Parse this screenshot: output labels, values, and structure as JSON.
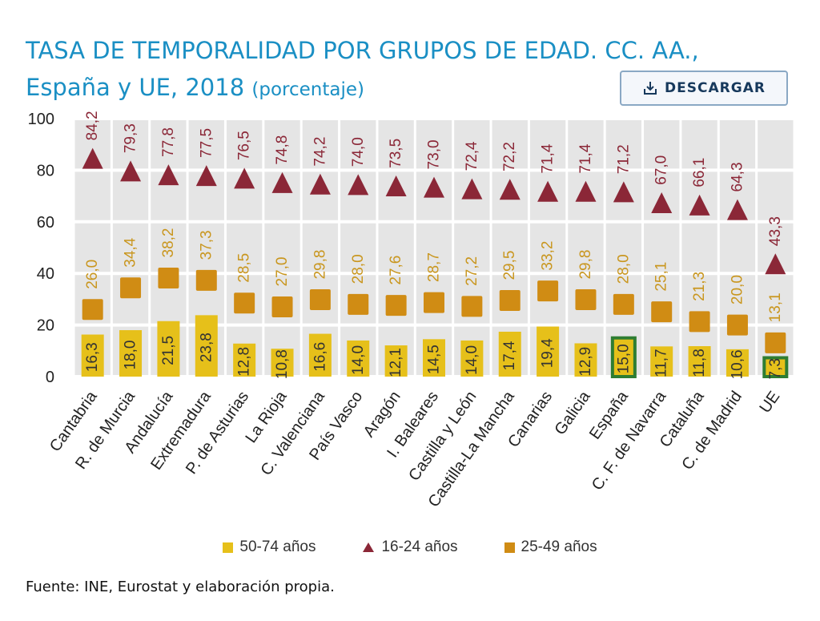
{
  "title": {
    "line1": "TASA DE TEMPORALIDAD POR GRUPOS DE EDAD. CC. AA.,",
    "line2": "España y UE, 2018",
    "unit": "(porcentaje)"
  },
  "download_button": {
    "label": "DESCARGAR",
    "icon": "download-icon"
  },
  "source": "Fuente: INE, Eurostat y elaboración propia.",
  "colors": {
    "age_50_74": "#e6c01a",
    "age_16_24": "#8b2737",
    "age_25_49": "#d08c14",
    "label_25_49": "#c9961e",
    "highlight": "#2e7d32",
    "plot_bg": "#e5e5e5",
    "title": "#1a8fc4"
  },
  "chart_data": {
    "type": "bar",
    "categories": [
      "Cantabria",
      "R. de Murcia",
      "Andalucía",
      "Extremadura",
      "P. de Asturias",
      "La Rioja",
      "C. Valenciana",
      "País Vasco",
      "Aragón",
      "I. Baleares",
      "Castilla y León",
      "Castilla-La Mancha",
      "Canarias",
      "Galicia",
      "España",
      "C. F. de Navarra",
      "Cataluña",
      "C. de Madrid",
      "UE"
    ],
    "series": [
      {
        "name": "50-74 años",
        "marker": "bar",
        "values": [
          16.3,
          18.0,
          21.5,
          23.8,
          12.8,
          10.8,
          16.6,
          14.0,
          12.1,
          14.5,
          14.0,
          17.4,
          19.4,
          12.9,
          15.0,
          11.7,
          11.8,
          10.6,
          7.3
        ]
      },
      {
        "name": "16-24 años",
        "marker": "triangle",
        "values": [
          84.2,
          79.3,
          77.8,
          77.5,
          76.5,
          74.8,
          74.2,
          74.0,
          73.5,
          73.0,
          72.4,
          72.2,
          71.4,
          71.4,
          71.2,
          67.0,
          66.1,
          64.3,
          43.3
        ]
      },
      {
        "name": "25-49 años",
        "marker": "square",
        "values": [
          26.0,
          34.4,
          38.2,
          37.3,
          28.5,
          27.0,
          29.8,
          28.0,
          27.6,
          28.7,
          27.2,
          29.5,
          33.2,
          29.8,
          28.0,
          25.1,
          21.3,
          20.0,
          13.1
        ]
      }
    ],
    "value_labels": {
      "50-74 años": [
        "16,3",
        "18,0",
        "21,5",
        "23,8",
        "12,8",
        "10,8",
        "16,6",
        "14,0",
        "12,1",
        "14,5",
        "14,0",
        "17,4",
        "19,4",
        "12,9",
        "15,0",
        "11,7",
        "11,8",
        "10,6",
        "7,3"
      ],
      "16-24 años": [
        "84,2",
        "79,3",
        "77,8",
        "77,5",
        "76,5",
        "74,8",
        "74,2",
        "74,0",
        "73,5",
        "73,0",
        "72,4",
        "72,2",
        "71,4",
        "71,4",
        "71,2",
        "67,0",
        "66,1",
        "64,3",
        "43,3"
      ],
      "25-49 años": [
        "26,0",
        "34,4",
        "38,2",
        "37,3",
        "28,5",
        "27,0",
        "29,8",
        "28,0",
        "27,6",
        "28,7",
        "27,2",
        "29,5",
        "33,2",
        "29,8",
        "28,0",
        "25,1",
        "21,3",
        "20,0",
        "13,1"
      ]
    },
    "highlighted_categories": [
      "España",
      "UE"
    ],
    "y_ticks": [
      "0",
      "20",
      "40",
      "60",
      "80",
      "100"
    ],
    "ylim": [
      0,
      100
    ],
    "xlabel": "",
    "ylabel": "",
    "grid": true,
    "legend": {
      "position": "bottom",
      "entries": [
        "50-74 años",
        "16-24 años",
        "25-49 años"
      ]
    }
  }
}
